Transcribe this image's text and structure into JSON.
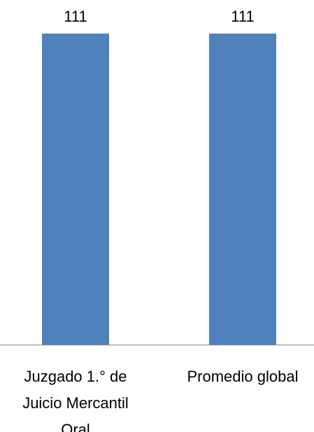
{
  "chart_data": {
    "type": "bar",
    "categories": [
      [
        "Juzgado 1.° de",
        "Juicio Mercantil",
        "Oral"
      ],
      [
        "Promedio global"
      ]
    ],
    "values": [
      111,
      111
    ],
    "data_labels": [
      "111",
      "111"
    ],
    "ylim": [
      0,
      111
    ],
    "grid": false,
    "legend": "none",
    "bar_color": "#4f81bd",
    "axis_color": "#868686"
  }
}
